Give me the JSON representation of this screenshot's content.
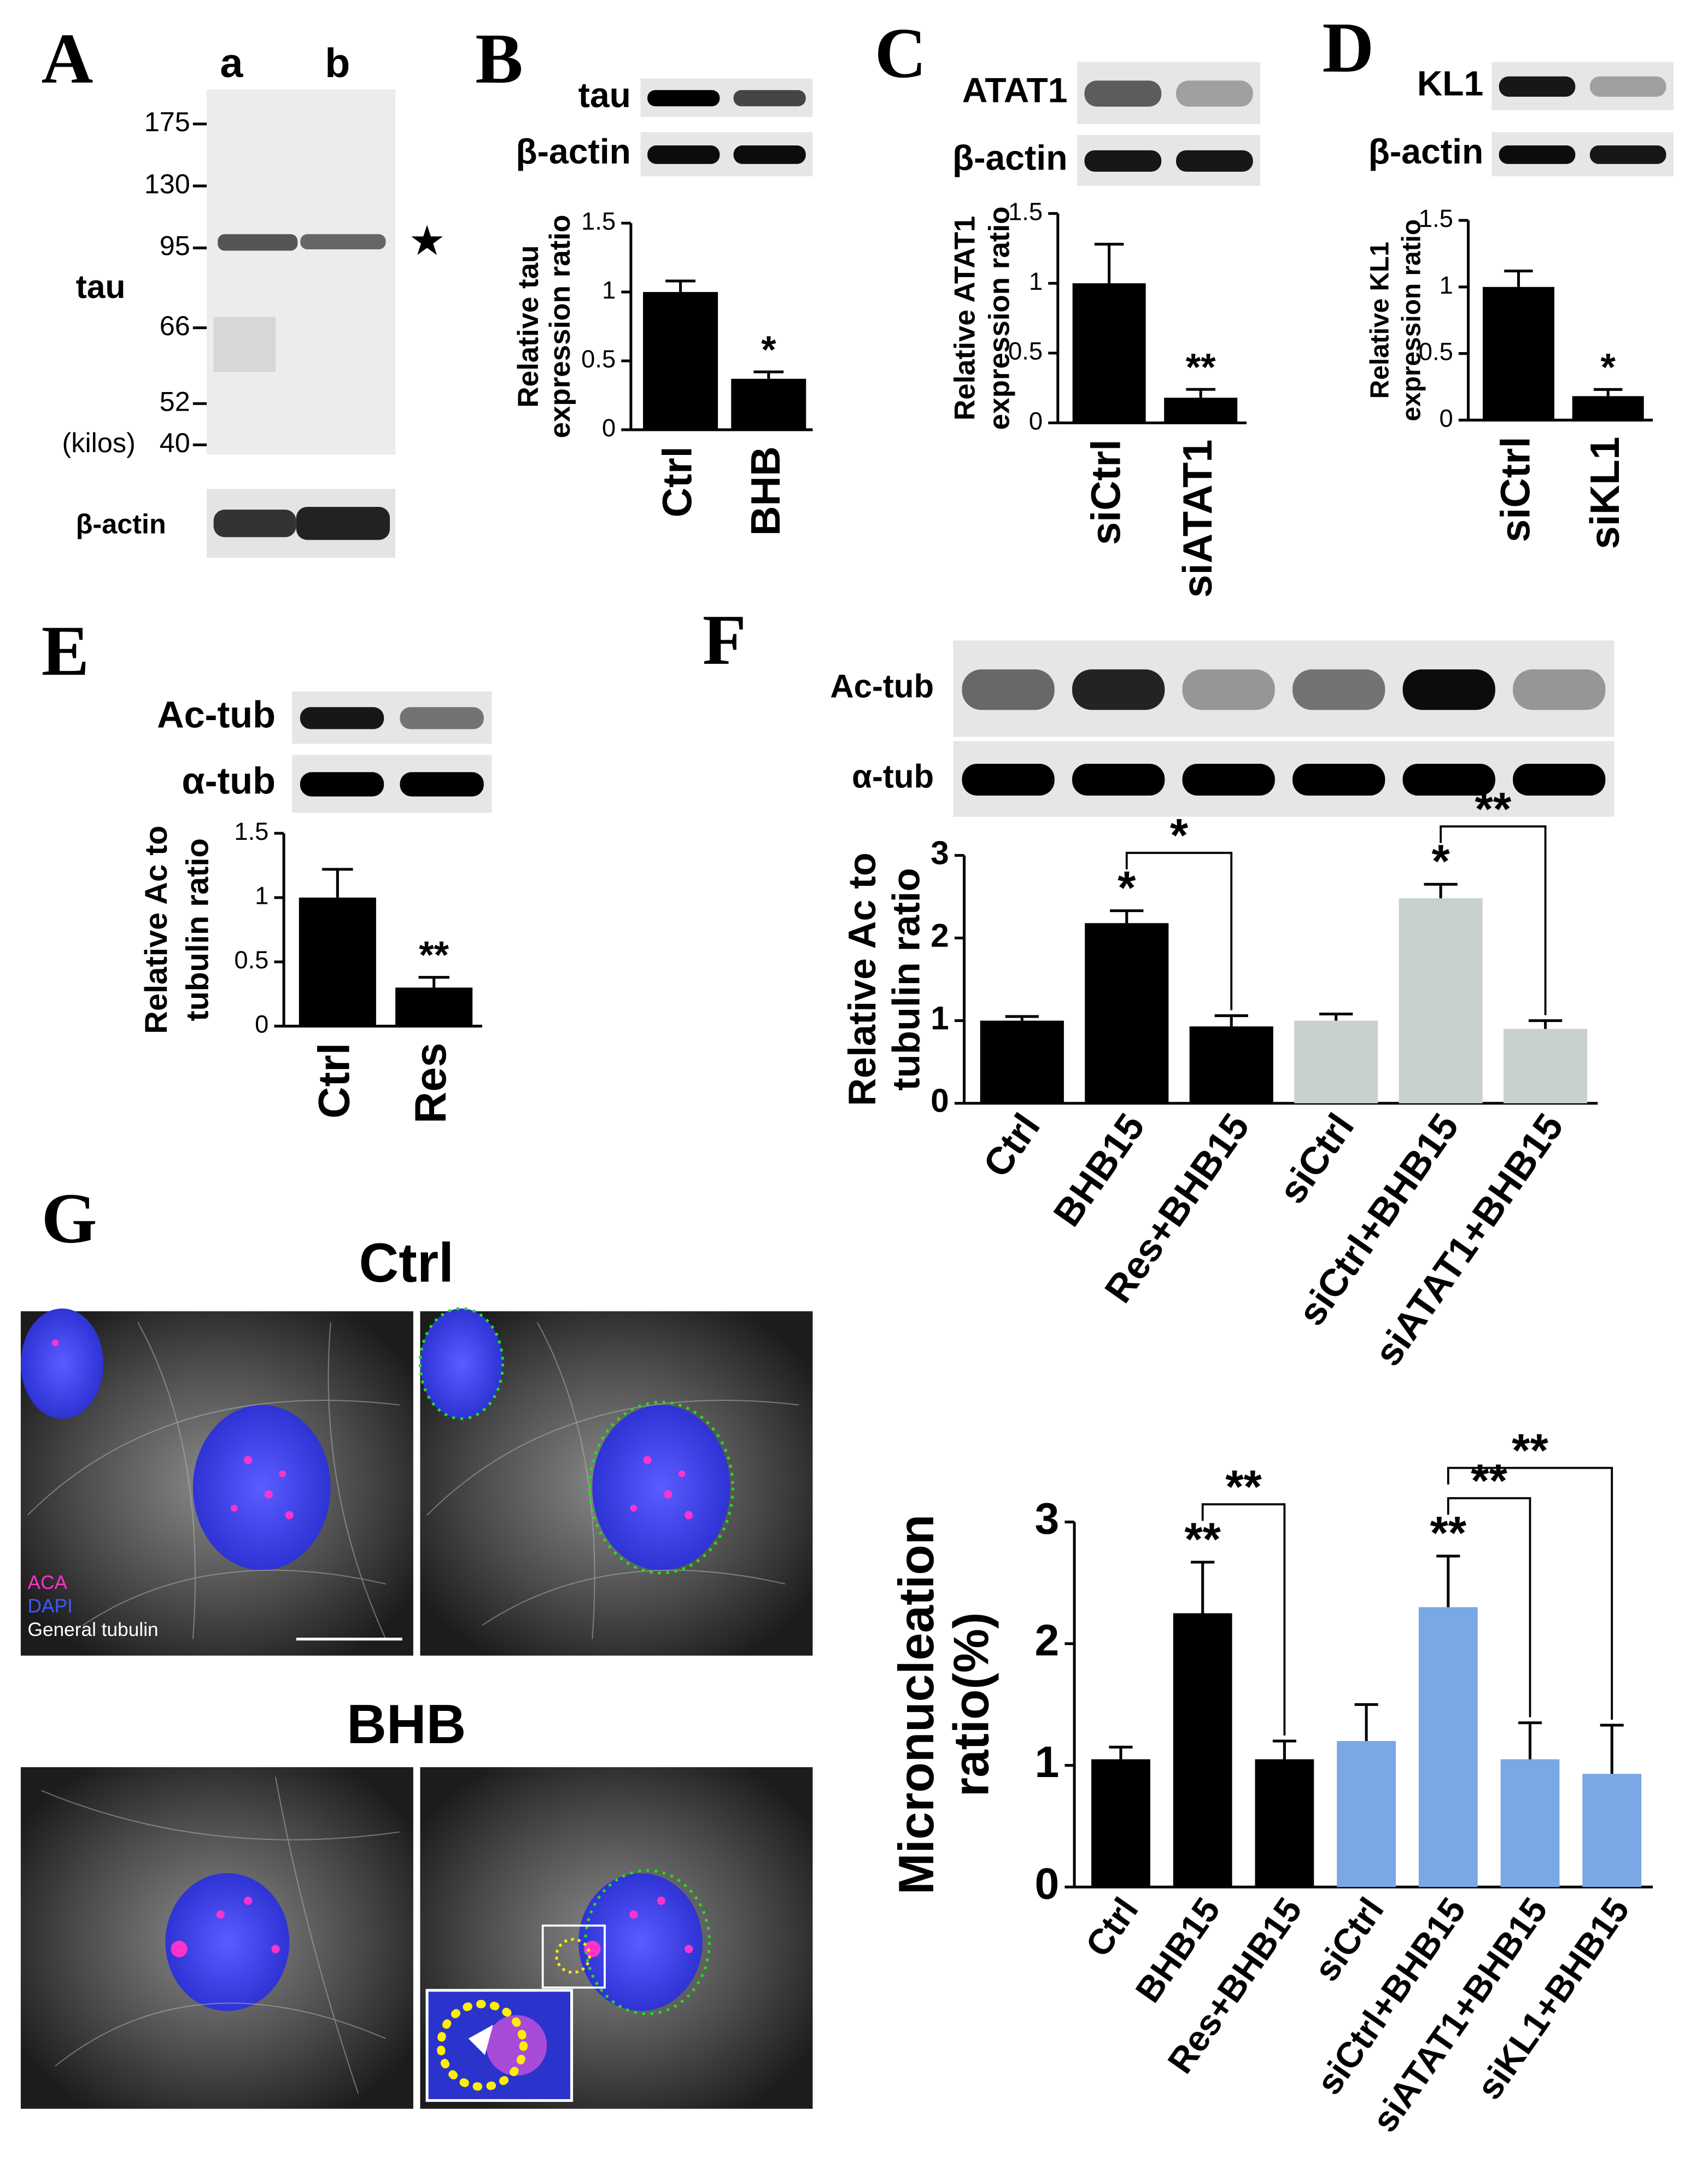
{
  "blot_a": {
    "panel": "A",
    "lanes": [
      "a",
      "b"
    ],
    "markers": [
      175,
      130,
      95,
      66,
      52,
      40
    ],
    "marker_unit": "(kilos)",
    "labels": [
      "tau",
      "β-actin"
    ],
    "star": "★"
  },
  "chart_data": [
    {
      "type": "bar",
      "panel": "B",
      "blot_labels": [
        "tau",
        "β-actin"
      ],
      "ylabel": [
        "Relative tau",
        "expression ratio"
      ],
      "categories": [
        "Ctrl",
        "BHB"
      ],
      "values": [
        1.0,
        0.37
      ],
      "errors": [
        0.08,
        0.05
      ],
      "colors": [
        "#000000",
        "#000000"
      ],
      "ylim": [
        0,
        1.5
      ],
      "yticks": [
        0,
        0.5,
        1,
        1.5
      ],
      "annotations": [
        {
          "category": "BHB",
          "text": "*"
        }
      ]
    },
    {
      "type": "bar",
      "panel": "C",
      "blot_labels": [
        "ATAT1",
        "β-actin"
      ],
      "ylabel": [
        "Relative ATAT1",
        "expression ratio"
      ],
      "categories": [
        "siCtrl",
        "siATAT1"
      ],
      "values": [
        1.0,
        0.18
      ],
      "errors": [
        0.28,
        0.06
      ],
      "colors": [
        "#000000",
        "#000000"
      ],
      "ylim": [
        0,
        1.5
      ],
      "yticks": [
        0,
        0.5,
        1,
        1.5
      ],
      "annotations": [
        {
          "category": "siATAT1",
          "text": "**"
        }
      ]
    },
    {
      "type": "bar",
      "panel": "D",
      "blot_labels": [
        "KL1",
        "β-actin"
      ],
      "ylabel": [
        "Relative KL1",
        "expression ratio"
      ],
      "categories": [
        "siCtrl",
        "siKL1"
      ],
      "values": [
        1.0,
        0.18
      ],
      "errors": [
        0.12,
        0.05
      ],
      "colors": [
        "#000000",
        "#000000"
      ],
      "ylim": [
        0,
        1.5
      ],
      "yticks": [
        0,
        0.5,
        1,
        1.5
      ],
      "annotations": [
        {
          "category": "siKL1",
          "text": "*"
        }
      ]
    },
    {
      "type": "bar",
      "panel": "E",
      "blot_labels": [
        "Ac-tub",
        "α-tub"
      ],
      "ylabel": [
        "Relative Ac to",
        "tubulin ratio"
      ],
      "categories": [
        "Ctrl",
        "Res"
      ],
      "values": [
        1.0,
        0.3
      ],
      "errors": [
        0.22,
        0.08
      ],
      "colors": [
        "#000000",
        "#000000"
      ],
      "ylim": [
        0,
        1.5
      ],
      "yticks": [
        0,
        0.5,
        1,
        1.5
      ],
      "annotations": [
        {
          "category": "Res",
          "text": "**"
        }
      ]
    },
    {
      "type": "bar",
      "panel": "F",
      "blot_labels": [
        "Ac-tub",
        "α-tub"
      ],
      "ylabel": [
        "Relative Ac to",
        "tubulin ratio"
      ],
      "categories": [
        "Ctrl",
        "BHB15",
        "Res+BHB15",
        "siCtrl",
        "siCtrl+BHB15",
        "siATAT1+BHB15"
      ],
      "values": [
        1.0,
        2.18,
        0.93,
        1.0,
        2.48,
        0.9
      ],
      "errors": [
        0.05,
        0.15,
        0.13,
        0.08,
        0.17,
        0.1
      ],
      "colors": [
        "#000000",
        "#000000",
        "#000000",
        "#c9d1cc",
        "#c9d1cc",
        "#c9d1cc"
      ],
      "ylim": [
        0,
        3
      ],
      "yticks": [
        0,
        1,
        2,
        3
      ],
      "annotations": [
        {
          "category": "BHB15",
          "text": "*"
        },
        {
          "category": "siCtrl+BHB15",
          "text": "*"
        }
      ],
      "brackets": [
        {
          "from": "BHB15",
          "to": "Res+BHB15",
          "text": "*"
        },
        {
          "from": "siCtrl+BHB15",
          "to": "siATAT1+BHB15",
          "text": "**"
        }
      ]
    },
    {
      "type": "bar",
      "ylabel": [
        "Micronucleation",
        "ratio(%)"
      ],
      "categories": [
        "Ctrl",
        "BHB15",
        "Res+BHB15",
        "siCtrl",
        "siCtrl+BHB15",
        "siATAT1+BHB15",
        "siKL1+BHB15"
      ],
      "values": [
        1.05,
        2.25,
        1.05,
        1.2,
        2.3,
        1.05,
        0.93
      ],
      "errors": [
        0.1,
        0.42,
        0.15,
        0.3,
        0.42,
        0.3,
        0.4
      ],
      "colors": [
        "#000000",
        "#000000",
        "#000000",
        "#7aa7e6",
        "#7aa7e6",
        "#7aa7e6",
        "#7aa7e6"
      ],
      "ylim": [
        0,
        3
      ],
      "yticks": [
        0,
        1,
        2,
        3
      ],
      "annotations": [
        {
          "category": "BHB15",
          "text": "**"
        },
        {
          "category": "siCtrl+BHB15",
          "text": "**"
        }
      ],
      "brackets": [
        {
          "from": "BHB15",
          "to": "Res+BHB15",
          "text": "**"
        },
        {
          "from": "siCtrl+BHB15",
          "to": "siATAT1+BHB15",
          "text": "**"
        },
        {
          "from": "siCtrl+BHB15",
          "to": "siKL1+BHB15",
          "text": "**"
        }
      ]
    }
  ],
  "micrographs": {
    "panel": "G",
    "rows": [
      "Ctrl",
      "BHB"
    ],
    "legend": [
      {
        "text": "ACA",
        "color": "#ff33cc"
      },
      {
        "text": "DAPI",
        "color": "#3d5bff"
      },
      {
        "text": "General tubulin",
        "color": "#ffffff"
      }
    ]
  }
}
